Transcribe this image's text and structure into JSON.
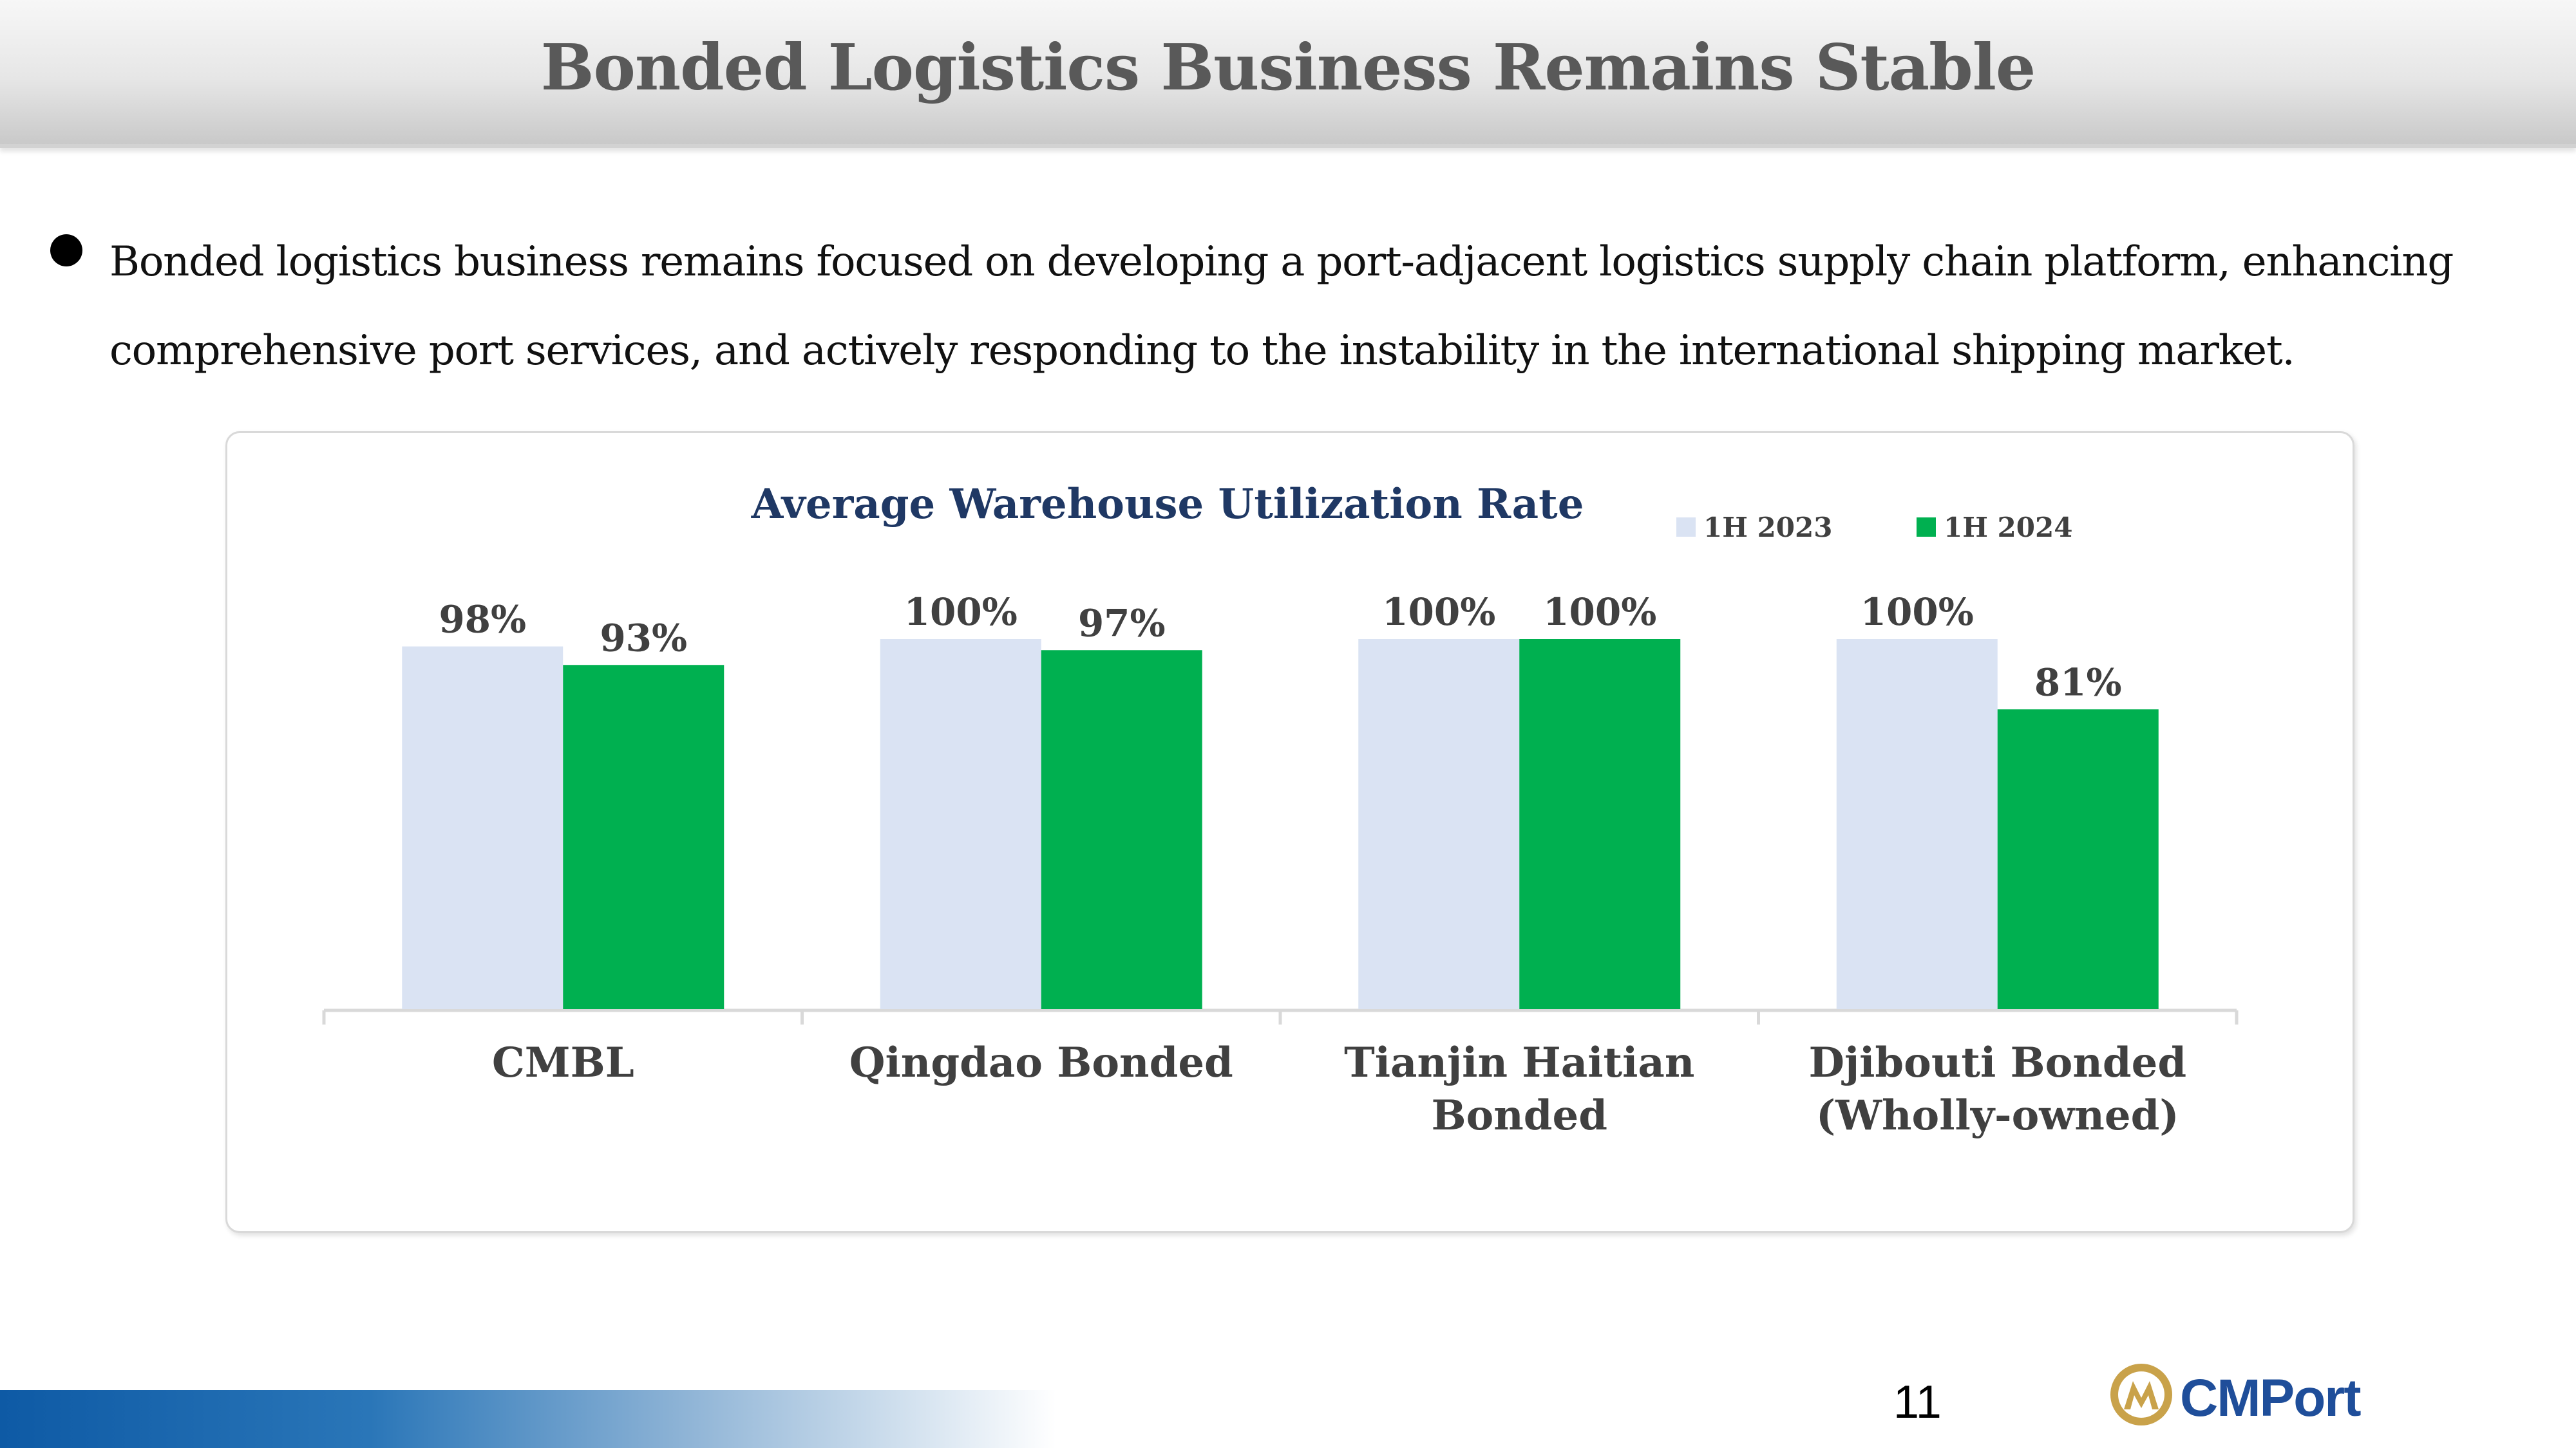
{
  "page": {
    "title": "Bonded Logistics Business Remains Stable",
    "bullet": "Bonded logistics business remains focused on developing a port-adjacent logistics supply chain platform, enhancing",
    "bullet_line2": "comprehensive port services, and actively responding to the instability in the international shipping market.",
    "page_number": "11",
    "logo_text": "CMPort",
    "logo_icon": "cmport-emblem-icon"
  },
  "chart_data": {
    "type": "bar",
    "title": "Average Warehouse Utilization Rate",
    "categories": [
      [
        "CMBL"
      ],
      [
        "Qingdao Bonded"
      ],
      [
        "Tianjin Haitian",
        "Bonded"
      ],
      [
        "Djibouti Bonded",
        "(Wholly-owned)"
      ]
    ],
    "series": [
      {
        "name": "1H 2023",
        "color": "#dae3f3",
        "values": [
          98,
          100,
          100,
          100
        ],
        "labels": [
          "98%",
          "100%",
          "100%",
          "100%"
        ]
      },
      {
        "name": "1H 2024",
        "color": "#00b050",
        "values": [
          93,
          97,
          100,
          81
        ],
        "labels": [
          "93%",
          "97%",
          "100%",
          "81%"
        ]
      }
    ],
    "ylim": [
      0,
      100
    ],
    "grid": false,
    "legend": "top-right",
    "title_color": "#1f3864",
    "label_color": "#404040"
  }
}
